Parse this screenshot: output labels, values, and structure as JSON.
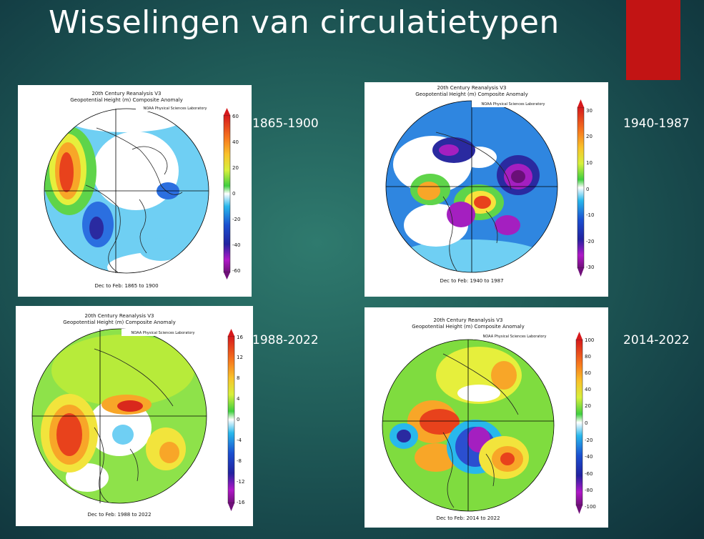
{
  "slide": {
    "title": "Wisselingen van circulatietypen",
    "accent_color": "#c21414"
  },
  "panels": [
    {
      "period": "1865-1900",
      "title_line1": "20th Century Reanalysis V3",
      "title_line2": "Geopotential Height (m) Composite Anomaly",
      "credit": "NOAA Physical Sciences Laboratory",
      "caption": "Dec to Feb: 1865 to 1900",
      "colorbar_labels": [
        "60",
        "40",
        "20",
        "0",
        "-20",
        "-40",
        "-60"
      ]
    },
    {
      "period": "1940-1987",
      "title_line1": "20th Century Reanalysis V3",
      "title_line2": "Geopotential Height (m) Composite Anomaly",
      "credit": "NOAA Physical Sciences Laboratory",
      "caption": "Dec to Feb: 1940 to 1987",
      "colorbar_labels": [
        "30",
        "20",
        "10",
        "0",
        "-10",
        "-20",
        "-30"
      ]
    },
    {
      "period": "1988-2022",
      "title_line1": "20th Century Reanalysis V3",
      "title_line2": "Geopotential Height (m) Composite Anomaly",
      "credit": "NOAA Physical Sciences Laboratory",
      "caption": "Dec to Feb: 1988 to 2022",
      "colorbar_labels": [
        "16",
        "12",
        "8",
        "4",
        "0",
        "-4",
        "-8",
        "-12",
        "-16"
      ]
    },
    {
      "period": "2014-2022",
      "title_line1": "20th Century Reanalysis V3",
      "title_line2": "Geopotential Height (m) Composite Anomaly",
      "credit": "NOAA Physical Sciences Laboratory",
      "caption": "Dec to Feb: 2014 to 2022",
      "colorbar_labels": [
        "100",
        "80",
        "60",
        "40",
        "20",
        "0",
        "-20",
        "-40",
        "-60",
        "-80",
        "-100"
      ]
    }
  ]
}
